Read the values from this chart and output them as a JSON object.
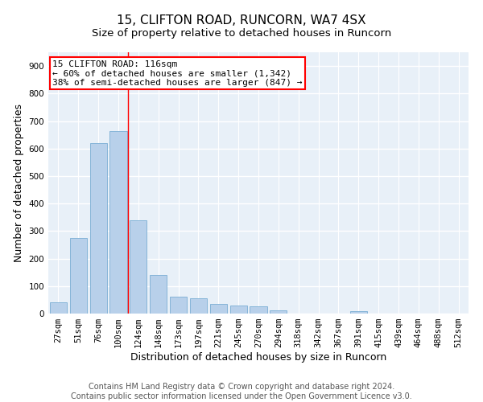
{
  "title_line1": "15, CLIFTON ROAD, RUNCORN, WA7 4SX",
  "title_line2": "Size of property relative to detached houses in Runcorn",
  "xlabel": "Distribution of detached houses by size in Runcorn",
  "ylabel": "Number of detached properties",
  "categories": [
    "27sqm",
    "51sqm",
    "76sqm",
    "100sqm",
    "124sqm",
    "148sqm",
    "173sqm",
    "197sqm",
    "221sqm",
    "245sqm",
    "270sqm",
    "294sqm",
    "318sqm",
    "342sqm",
    "367sqm",
    "391sqm",
    "415sqm",
    "439sqm",
    "464sqm",
    "488sqm",
    "512sqm"
  ],
  "values": [
    42,
    275,
    620,
    665,
    340,
    140,
    60,
    55,
    35,
    30,
    25,
    12,
    0,
    0,
    0,
    10,
    0,
    0,
    0,
    0,
    0
  ],
  "bar_color": "#b8d0ea",
  "bar_edge_color": "#7aadd4",
  "background_color": "#e8f0f8",
  "grid_color": "#ffffff",
  "annotation_box_text": "15 CLIFTON ROAD: 116sqm\n← 60% of detached houses are smaller (1,342)\n38% of semi-detached houses are larger (847) →",
  "ylim": [
    0,
    950
  ],
  "yticks": [
    0,
    100,
    200,
    300,
    400,
    500,
    600,
    700,
    800,
    900
  ],
  "footer_line1": "Contains HM Land Registry data © Crown copyright and database right 2024.",
  "footer_line2": "Contains public sector information licensed under the Open Government Licence v3.0.",
  "title_fontsize": 11,
  "subtitle_fontsize": 9.5,
  "axis_label_fontsize": 9,
  "tick_fontsize": 7.5,
  "footer_fontsize": 7,
  "annotation_fontsize": 8,
  "red_line_x": 3.48
}
